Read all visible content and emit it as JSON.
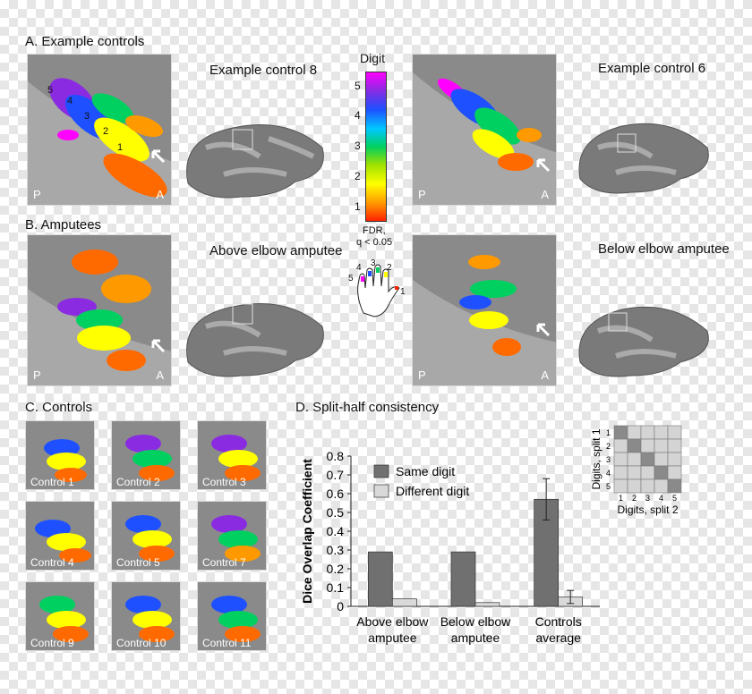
{
  "panels": {
    "a_title": "A. Example controls",
    "b_title": "B. Amputees",
    "c_title": "C. Controls",
    "d_title": "D. Split-half consistency"
  },
  "brains": {
    "control8": "Example control 8",
    "control6": "Example control 6",
    "above_elbow": "Above elbow amputee",
    "below_elbow": "Below elbow amputee",
    "posterior": "P",
    "anterior": "A"
  },
  "colorbar": {
    "title": "Digit",
    "ticks": [
      "5",
      "4",
      "3",
      "2",
      "1"
    ],
    "fdr_line1": "FDR,",
    "fdr_line2": "q < 0.05",
    "colors": [
      "#ff00ff",
      "#1e50ff",
      "#00d060",
      "#ffff00",
      "#ff2200"
    ]
  },
  "hand": {
    "digits": [
      "5",
      "4",
      "3",
      "2",
      "1"
    ]
  },
  "digit_arrows": [
    "5",
    "4",
    "3",
    "2",
    "1"
  ],
  "controls_grid": [
    "Control 1",
    "Control 2",
    "Control 3",
    "Control 4",
    "Control 5",
    "Control 7",
    "Control 9",
    "Control 10",
    "Control 11"
  ],
  "chart_data": {
    "type": "bar",
    "categories": [
      "Above elbow amputee",
      "Below elbow amputee",
      "Controls average"
    ],
    "category_lines": [
      [
        "Above elbow",
        "amputee"
      ],
      [
        "Below elbow",
        "amputee"
      ],
      [
        "Controls",
        "average"
      ]
    ],
    "series": [
      {
        "name": "Same digit",
        "values": [
          0.29,
          0.29,
          0.57
        ],
        "color": "#707070"
      },
      {
        "name": "Different digit",
        "values": [
          0.04,
          0.02,
          0.05
        ],
        "color": "#d9d9d9"
      }
    ],
    "error_bars": {
      "Controls average": [
        0.11,
        0.035
      ]
    },
    "ylabel": "Dice Overlap Coefficient",
    "xlabel": "",
    "ylim": [
      0,
      0.8
    ],
    "yticks": [
      "0",
      "0.1",
      "0.2",
      "0.3",
      "0.4",
      "0.5",
      "0.6",
      "0.7",
      "0.8"
    ],
    "legend_position": "top-left",
    "inset": {
      "type": "heatmap",
      "xlabel": "Digits, split 2",
      "ylabel": "Digits, split 1",
      "ticks": [
        "1",
        "2",
        "3",
        "4",
        "5"
      ],
      "diagonal_color": "#8a8a8a",
      "offdiag_color": "#d4d4d4"
    }
  }
}
